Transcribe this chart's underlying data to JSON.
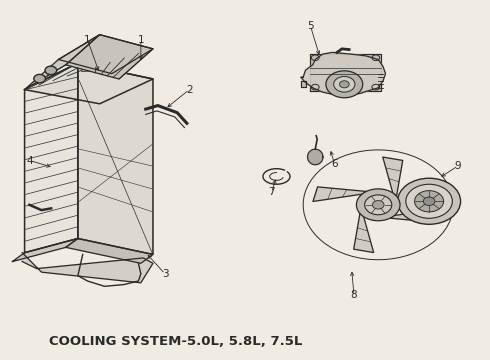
{
  "title": "COOLING SYSTEM-",
  "title_suffix": "5.0L, 5.8L, 7.5L",
  "title_bold": true,
  "title_fontsize": 9.5,
  "background_color": "#f0ece4",
  "line_color": "#2a2a2a",
  "fig_width": 4.9,
  "fig_height": 3.6,
  "dpi": 100,
  "label_fontsize": 7.5,
  "label_defs": [
    [
      1,
      0.175,
      0.895,
      0.2,
      0.8
    ],
    [
      1,
      0.285,
      0.895,
      0.285,
      0.83
    ],
    [
      2,
      0.385,
      0.755,
      0.335,
      0.7
    ],
    [
      3,
      0.335,
      0.235,
      0.295,
      0.295
    ],
    [
      4,
      0.055,
      0.555,
      0.105,
      0.535
    ],
    [
      5,
      0.635,
      0.935,
      0.655,
      0.845
    ],
    [
      6,
      0.685,
      0.545,
      0.675,
      0.59
    ],
    [
      7,
      0.555,
      0.465,
      0.565,
      0.51
    ],
    [
      8,
      0.725,
      0.175,
      0.72,
      0.25
    ],
    [
      9,
      0.94,
      0.54,
      0.9,
      0.505
    ]
  ]
}
